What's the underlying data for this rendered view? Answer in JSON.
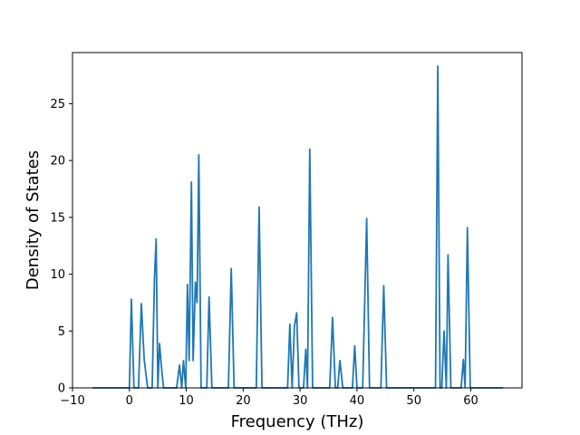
{
  "chart_data": {
    "type": "line",
    "title": "",
    "xlabel": "Frequency (THz)",
    "ylabel": "Density of States",
    "xlim": [
      -10,
      69
    ],
    "ylim": [
      0,
      29.5
    ],
    "xticks": [
      -10,
      0,
      10,
      20,
      30,
      40,
      50,
      60
    ],
    "yticks": [
      0,
      5,
      10,
      15,
      20,
      25
    ],
    "grid": false,
    "legend": "none",
    "line_color": "#1f77b4",
    "series": [
      {
        "x": [
          -6.5,
          0.0,
          0.35,
          0.8,
          1.6,
          2.1,
          2.6,
          3.2,
          4.0,
          4.4,
          4.7,
          5.0,
          5.3,
          5.6,
          6.0,
          8.3,
          8.8,
          9.2,
          9.5,
          9.9,
          10.2,
          10.5,
          10.9,
          11.2,
          11.6,
          11.9,
          12.2,
          12.6,
          13.0,
          13.6,
          14.0,
          14.5,
          17.4,
          17.9,
          18.4,
          22.3,
          22.8,
          23.3,
          27.8,
          28.2,
          28.6,
          29.0,
          29.4,
          29.8,
          30.6,
          31.0,
          31.3,
          31.7,
          32.2,
          35.2,
          35.7,
          36.2,
          36.6,
          37.0,
          37.5,
          39.2,
          39.6,
          40.0,
          41.0,
          41.7,
          42.2,
          44.2,
          44.7,
          45.2,
          53.8,
          54.2,
          54.6,
          54.9,
          55.3,
          55.7,
          56.0,
          56.5,
          58.3,
          58.7,
          59.0,
          59.4,
          59.9,
          65.7
        ],
        "y": [
          0,
          0,
          7.8,
          0,
          0,
          7.4,
          2.5,
          0,
          0,
          9.5,
          13.1,
          0,
          3.9,
          2.0,
          0,
          0,
          2.0,
          0,
          2.4,
          0,
          9.1,
          2.4,
          18.1,
          2.4,
          9.3,
          7.5,
          20.5,
          0,
          0,
          0,
          8.0,
          0,
          0,
          10.5,
          0,
          0,
          15.9,
          0,
          0,
          5.6,
          0,
          5.4,
          6.6,
          0,
          0,
          3.4,
          0,
          21.0,
          0,
          0,
          6.2,
          0,
          0,
          2.4,
          0,
          0,
          3.7,
          0,
          0,
          14.9,
          0,
          0,
          9.0,
          0,
          0,
          28.3,
          0,
          0,
          5.0,
          0,
          11.7,
          0,
          0,
          2.5,
          0,
          14.1,
          0,
          0
        ]
      }
    ]
  }
}
